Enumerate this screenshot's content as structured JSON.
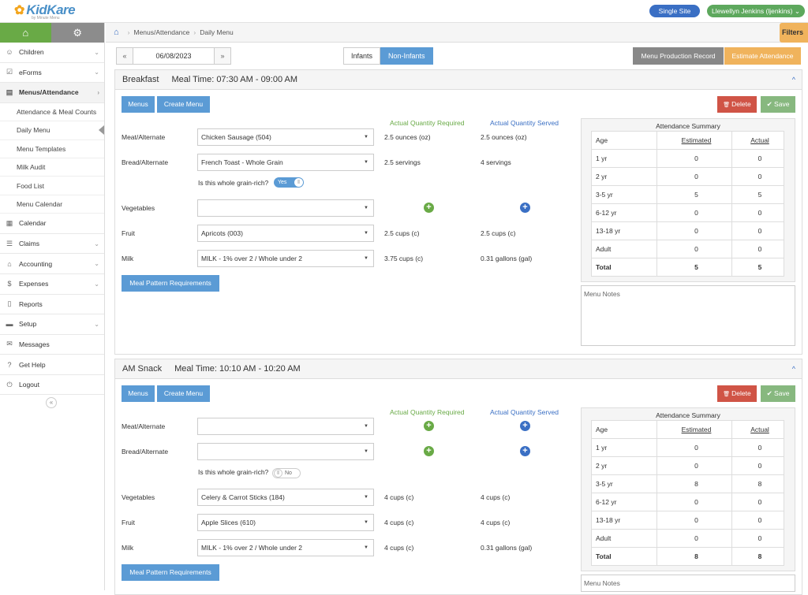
{
  "app": {
    "logo": "KidKare",
    "logo_sub": "by Minute Menu"
  },
  "header": {
    "site": "Single Site",
    "user": "Llewellyn Jenkins (ljenkins)"
  },
  "sidebar": {
    "items": [
      {
        "label": "Children",
        "icon": "child-icon"
      },
      {
        "label": "eForms",
        "icon": "checkbox-icon"
      },
      {
        "label": "Menus/Attendance",
        "icon": "clipboard-icon"
      }
    ],
    "sub_items": [
      "Attendance & Meal Counts",
      "Daily Menu",
      "Menu Templates",
      "Milk Audit",
      "Food List",
      "Menu Calendar"
    ],
    "items_after": [
      {
        "label": "Calendar",
        "icon": "calendar-icon"
      },
      {
        "label": "Claims",
        "icon": "list-icon"
      },
      {
        "label": "Accounting",
        "icon": "bank-icon"
      },
      {
        "label": "Expenses",
        "icon": "dollar-icon"
      },
      {
        "label": "Reports",
        "icon": "document-icon"
      },
      {
        "label": "Setup",
        "icon": "briefcase-icon"
      },
      {
        "label": "Messages",
        "icon": "envelope-icon"
      },
      {
        "label": "Get Help",
        "icon": "help-icon"
      },
      {
        "label": "Logout",
        "icon": "power-icon"
      }
    ]
  },
  "breadcrumb": {
    "parent": "Menus/Attendance",
    "current": "Daily Menu"
  },
  "filters_label": "Filters",
  "date": {
    "value": "06/08/2023",
    "prev": "«",
    "next": "»"
  },
  "toggle": {
    "infants": "Infants",
    "non_infants": "Non-Infants"
  },
  "actions": {
    "menu_production": "Menu Production Record",
    "estimate": "Estimate Attendance"
  },
  "labels": {
    "menus": "Menus",
    "create_menu": "Create Menu",
    "delete": "Delete",
    "save": "Save",
    "qty_required": "Actual Quantity Required",
    "qty_served": "Actual Quantity Served",
    "whole_grain": "Is this whole grain-rich?",
    "yes": "Yes",
    "no": "No",
    "meal_pattern": "Meal Pattern Requirements",
    "attendance_summary": "Attendance Summary",
    "menu_notes": "Menu Notes",
    "col_age": "Age",
    "col_estimated": "Estimated",
    "col_actual": "Actual"
  },
  "meals": [
    {
      "name": "Breakfast",
      "time": "Meal Time: 07:30 AM - 09:00 AM",
      "rows": [
        {
          "label": "Meat/Alternate",
          "value": "Chicken Sausage (504)",
          "required": "2.5 ounces (oz)",
          "served": "2.5 ounces (oz)"
        },
        {
          "label": "Bread/Alternate",
          "value": "French Toast - Whole Grain",
          "required": "2.5 servings",
          "served": "4 servings"
        },
        {
          "label": "Vegetables",
          "value": "",
          "required": "",
          "served": ""
        },
        {
          "label": "Fruit",
          "value": "Apricots (003)",
          "required": "2.5 cups (c)",
          "served": "2.5 cups (c)"
        },
        {
          "label": "Milk",
          "value": "MILK - 1% over 2 / Whole under 2",
          "required": "3.75 cups (c)",
          "served": "0.31 gallons (gal)"
        }
      ],
      "attendance": [
        [
          "1 yr",
          "0",
          "0"
        ],
        [
          "2 yr",
          "0",
          "0"
        ],
        [
          "3-5 yr",
          "5",
          "5"
        ],
        [
          "6-12 yr",
          "0",
          "0"
        ],
        [
          "13-18 yr",
          "0",
          "0"
        ],
        [
          "Adult",
          "0",
          "0"
        ],
        [
          "Total",
          "5",
          "5"
        ]
      ]
    },
    {
      "name": "AM Snack",
      "time": "Meal Time: 10:10 AM - 10:20 AM",
      "rows": [
        {
          "label": "Meat/Alternate",
          "value": "",
          "required": "",
          "served": ""
        },
        {
          "label": "Bread/Alternate",
          "value": "",
          "required": "",
          "served": ""
        },
        {
          "label": "Vegetables",
          "value": "Celery & Carrot Sticks (184)",
          "required": "4 cups (c)",
          "served": "4 cups (c)"
        },
        {
          "label": "Fruit",
          "value": "Apple Slices (610)",
          "required": "4 cups (c)",
          "served": "4 cups (c)"
        },
        {
          "label": "Milk",
          "value": "MILK - 1% over 2 / Whole under 2",
          "required": "4 cups (c)",
          "served": "0.31 gallons (gal)"
        }
      ],
      "attendance": [
        [
          "1 yr",
          "0",
          "0"
        ],
        [
          "2 yr",
          "0",
          "0"
        ],
        [
          "3-5 yr",
          "8",
          "8"
        ],
        [
          "6-12 yr",
          "0",
          "0"
        ],
        [
          "13-18 yr",
          "0",
          "0"
        ],
        [
          "Adult",
          "0",
          "0"
        ],
        [
          "Total",
          "8",
          "8"
        ]
      ]
    }
  ]
}
